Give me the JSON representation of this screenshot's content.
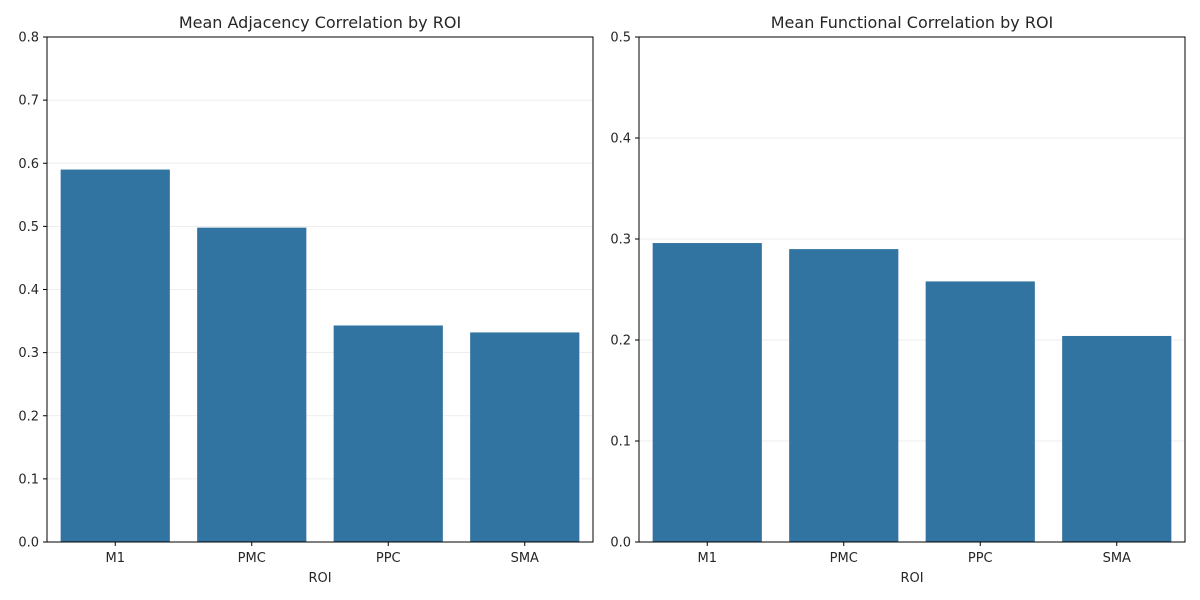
{
  "chart_data": [
    {
      "type": "bar",
      "title": "Mean Adjacency Correlation by ROI",
      "xlabel": "ROI",
      "ylabel": "",
      "categories": [
        "M1",
        "PMC",
        "PPC",
        "SMA"
      ],
      "values": [
        0.59,
        0.498,
        0.343,
        0.332
      ],
      "ylim": [
        0,
        0.8
      ],
      "yticks": [
        "0.0",
        "0.1",
        "0.2",
        "0.3",
        "0.4",
        "0.5",
        "0.6",
        "0.7",
        "0.8"
      ],
      "grid": "horizontal",
      "bar_color": "#3274a1"
    },
    {
      "type": "bar",
      "title": "Mean Functional Correlation by ROI",
      "xlabel": "ROI",
      "ylabel": "",
      "categories": [
        "M1",
        "PMC",
        "PPC",
        "SMA"
      ],
      "values": [
        0.296,
        0.29,
        0.258,
        0.204
      ],
      "ylim": [
        0,
        0.5
      ],
      "yticks": [
        "0.0",
        "0.1",
        "0.2",
        "0.3",
        "0.4",
        "0.5"
      ],
      "grid": "horizontal",
      "bar_color": "#3274a1"
    }
  ]
}
